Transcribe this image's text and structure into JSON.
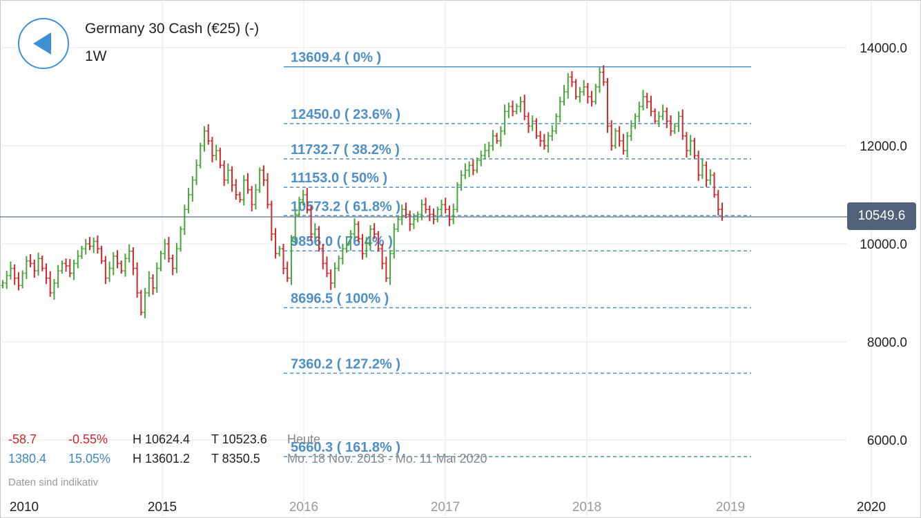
{
  "header": {
    "instrument": "Germany 30 Cash (€25) (-)",
    "timeframe": "1W"
  },
  "current_price": "10549.6",
  "info": {
    "today": {
      "change": "-58.7",
      "change_pct": "-0.55%",
      "high": "H 10624.4",
      "low": "T 10523.6",
      "period": "Heute"
    },
    "range": {
      "change": "1380.4",
      "change_pct": "15.05%",
      "high": "H 13601.2",
      "low": "T 8350.5",
      "period": "Mo. 18 Nov. 2013 - Mo. 11 Mai 2020"
    }
  },
  "disclaimer": "Daten sind indikativ",
  "colors": {
    "up": "#48a53a",
    "down": "#d22828",
    "fib": "#4f8fc8",
    "price_line": "#5a6e86",
    "accent": "#3d8fd6"
  },
  "chart_data": {
    "type": "ohlc",
    "x_ticks": [
      "2010",
      "2015",
      "2016",
      "2017",
      "2018",
      "2019",
      "2020"
    ],
    "y_ticks": [
      "6000.0",
      "8000.0",
      "10000.0",
      "12000.0",
      "14000.0"
    ],
    "ylim": [
      5000,
      14800
    ],
    "fibonacci": [
      {
        "label": "13609.4 ( 0% )",
        "value": 13609.4
      },
      {
        "label": "12450.0 ( 23.6% )",
        "value": 12450.0
      },
      {
        "label": "11732.7 ( 38.2% )",
        "value": 11732.7
      },
      {
        "label": "11153.0 ( 50% )",
        "value": 11153.0
      },
      {
        "label": "10573.2 ( 61.8% )",
        "value": 10573.2
      },
      {
        "label": "9856.0 ( 76.4% )",
        "value": 9856.0
      },
      {
        "label": "8696.5 ( 100% )",
        "value": 8696.5
      },
      {
        "label": "7360.2 ( 127.2% )",
        "value": 7360.2
      },
      {
        "label": "5660.3 ( 161.8% )",
        "value": 5660.3
      }
    ],
    "series": [
      {
        "values": [
          9200,
          9350,
          9500,
          9300,
          9150,
          9400,
          9650,
          9600,
          9450,
          9700,
          9500,
          9300,
          9000,
          9200,
          9450,
          9600,
          9550,
          9400,
          9600,
          9750,
          9900,
          10000,
          9950,
          10050,
          9900,
          9650,
          9300,
          9500,
          9750,
          9600,
          9450,
          9700,
          9850,
          9500,
          9000,
          8600,
          9000,
          9300,
          9100,
          9500,
          9800,
          10000,
          9700,
          9500,
          9900,
          10300,
          10700,
          11000,
          11300,
          11600,
          12000,
          12300,
          12100,
          11800,
          11900,
          11600,
          11300,
          11500,
          11200,
          11000,
          10900,
          11300,
          11100,
          10800,
          11100,
          11500,
          11300,
          10800,
          10200,
          9800,
          9900,
          9500,
          9300,
          10100,
          10600,
          10900,
          11000,
          10700,
          10200,
          10300,
          9900,
          9600,
          9400,
          9200,
          9500,
          9700,
          9900,
          10000,
          10200,
          10400,
          10100,
          9800,
          10000,
          10300,
          10200,
          9900,
          9600,
          9300,
          9800,
          10300,
          10500,
          10700,
          10600,
          10400,
          10500,
          10600,
          10800,
          10700,
          10600,
          10500,
          10700,
          10800,
          10700,
          10500,
          10700,
          11200,
          11400,
          11500,
          11600,
          11500,
          11700,
          11800,
          11900,
          12000,
          12200,
          12100,
          12300,
          12700,
          12800,
          12700,
          12800,
          12900,
          12600,
          12400,
          12500,
          12200,
          12100,
          12000,
          12200,
          12300,
          12600,
          12900,
          13100,
          13400,
          13300,
          13000,
          13100,
          13200,
          13000,
          12900,
          13200,
          13500,
          13300,
          12400,
          12000,
          12300,
          12100,
          11900,
          12200,
          12400,
          12600,
          12800,
          13000,
          12900,
          12700,
          12500,
          12600,
          12700,
          12500,
          12300,
          12400,
          12600,
          12200,
          11900,
          12100,
          11800,
          11400,
          11600,
          11300,
          11400,
          11000,
          10700,
          10550
        ]
      }
    ]
  }
}
